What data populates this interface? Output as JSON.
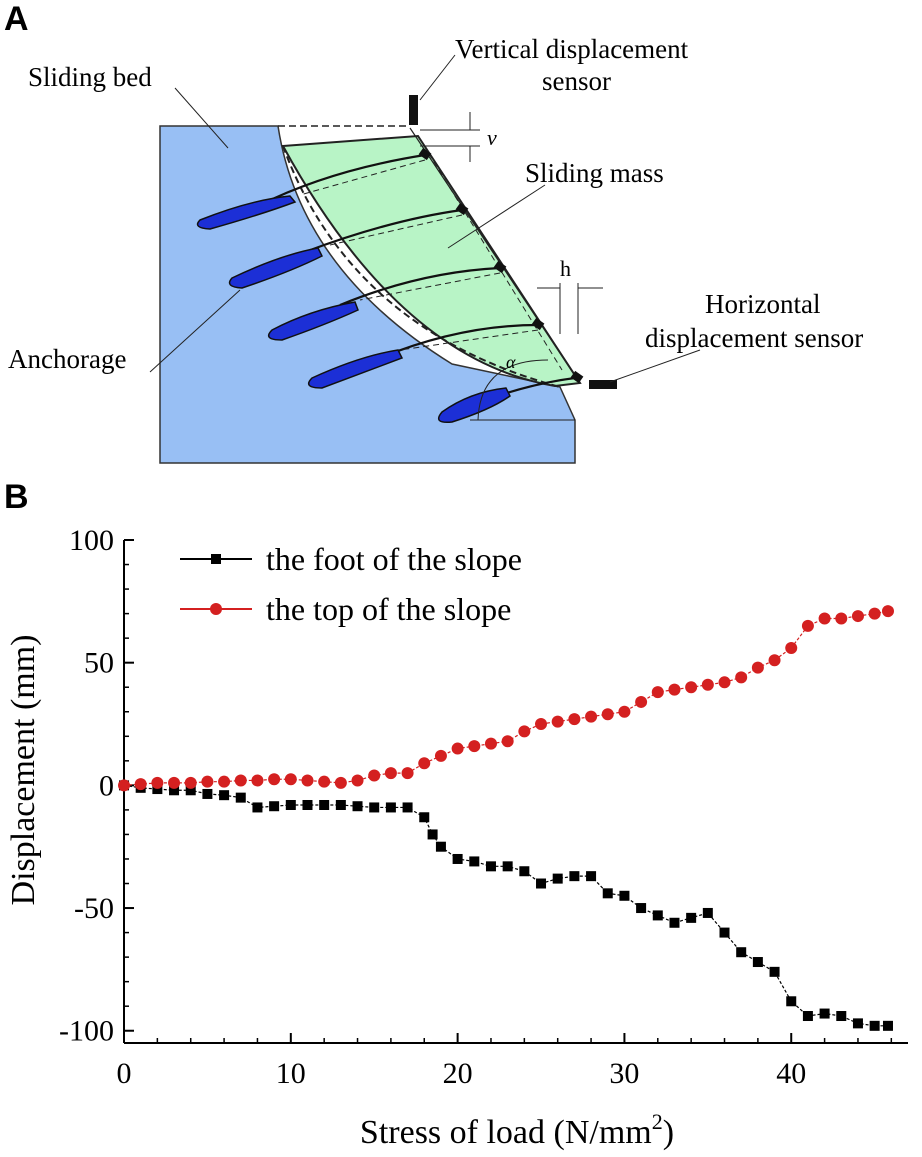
{
  "panel_a": {
    "letter": "A",
    "labels": {
      "sliding_bed": "Sliding bed",
      "vertical_sensor_line1": "Vertical displacement",
      "vertical_sensor_line2": "sensor",
      "v": "v",
      "sliding_mass": "Sliding mass",
      "h": "h",
      "horizontal_sensor_line1": "Horizontal",
      "horizontal_sensor_line2": "displacement sensor",
      "anchorage": "Anchorage",
      "alpha": "α"
    },
    "colors": {
      "bed": "#98bff4",
      "mass": "#b8f4c6",
      "anchor": "#1c2fd6"
    }
  },
  "panel_b": {
    "letter": "B"
  },
  "chart_data": {
    "type": "line",
    "xlabel": "Stress of load (N/mm",
    "xlabel_sup": "2",
    "xlabel_end": ")",
    "ylabel": "Displacement (mm)",
    "xlim": [
      0,
      47
    ],
    "ylim": [
      -105,
      100
    ],
    "x_ticks": [
      "0",
      "10",
      "20",
      "30",
      "40"
    ],
    "x_tick_values": [
      0,
      10,
      20,
      30,
      40
    ],
    "y_ticks": [
      "100",
      "50",
      "0",
      "-50",
      "-100"
    ],
    "y_tick_values": [
      100,
      50,
      0,
      -50,
      -100
    ],
    "legend_position": "top-left",
    "series": [
      {
        "name": "the foot of the slope",
        "color": "#000000",
        "marker": "square",
        "x": [
          0,
          1,
          2,
          3,
          4,
          5,
          6,
          7,
          8,
          9,
          10,
          11,
          12,
          13,
          14,
          15,
          16,
          17,
          18,
          18.5,
          19,
          20,
          21,
          22,
          23,
          24,
          25,
          26,
          27,
          28,
          29,
          30,
          31,
          32,
          33,
          34,
          35,
          36,
          37,
          38,
          39,
          40,
          41,
          42,
          43,
          44,
          45,
          45.8
        ],
        "y": [
          0,
          -1,
          -1.5,
          -2,
          -2,
          -3.5,
          -4,
          -5,
          -9,
          -8.5,
          -8,
          -8,
          -8,
          -8,
          -8.5,
          -9,
          -9,
          -9,
          -13,
          -20,
          -25,
          -30,
          -31,
          -33,
          -33,
          -35,
          -40,
          -38,
          -37,
          -37,
          -44,
          -45,
          -50,
          -53,
          -56,
          -54,
          -52,
          -60,
          -68,
          -72,
          -76,
          -88,
          -94,
          -93,
          -94,
          -97,
          -98,
          -98
        ]
      },
      {
        "name": "the top of the slope",
        "color": "#d42020",
        "marker": "circle",
        "x": [
          0,
          1,
          2,
          3,
          4,
          5,
          6,
          7,
          8,
          9,
          10,
          11,
          12,
          13,
          14,
          15,
          16,
          17,
          18,
          19,
          20,
          21,
          22,
          23,
          24,
          25,
          26,
          27,
          28,
          29,
          30,
          31,
          32,
          33,
          34,
          35,
          36,
          37,
          38,
          39,
          40,
          41,
          42,
          43,
          44,
          45,
          45.8
        ],
        "y": [
          0,
          0.5,
          1,
          1,
          1,
          1.5,
          1.5,
          2,
          2,
          2.5,
          2.5,
          2,
          1.5,
          1,
          2,
          4,
          5,
          5,
          9,
          12,
          15,
          16,
          17,
          18,
          22,
          25,
          26,
          27,
          28,
          29,
          30,
          34,
          38,
          39,
          40,
          41,
          42,
          44,
          48,
          51,
          56,
          65,
          68,
          68,
          69,
          70,
          71
        ]
      }
    ]
  }
}
